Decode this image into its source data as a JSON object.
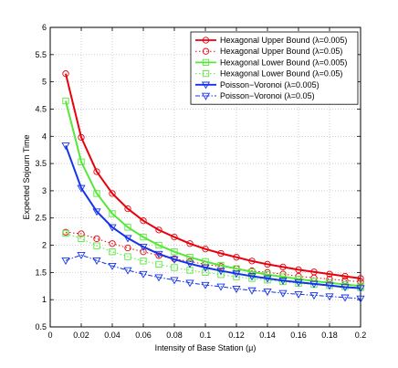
{
  "chart_data": {
    "type": "line",
    "title": "",
    "xlabel": "Intensity of Base Station (μ)",
    "ylabel": "Expected Sojourn Time",
    "xlim": [
      0,
      0.2
    ],
    "ylim": [
      0.5,
      6
    ],
    "xticks": [
      0,
      0.02,
      0.04,
      0.06,
      0.08,
      0.1,
      0.12,
      0.14,
      0.16,
      0.18,
      0.2
    ],
    "xtick_labels": [
      "0",
      "0.02",
      "0.04",
      "0.06",
      "0.08",
      "0.1",
      "0.12",
      "0.14",
      "0.16",
      "0.18",
      "0.2"
    ],
    "yticks": [
      0.5,
      1,
      1.5,
      2,
      2.5,
      3,
      3.5,
      4,
      4.5,
      5,
      5.5,
      6
    ],
    "ytick_labels": [
      "0.5",
      "1",
      "1.5",
      "2",
      "2.5",
      "3",
      "3.5",
      "4",
      "4.5",
      "5",
      "5.5",
      "6"
    ],
    "grid": true,
    "legend_position": "top-right",
    "x": [
      0.01,
      0.02,
      0.03,
      0.04,
      0.05,
      0.06,
      0.07,
      0.08,
      0.09,
      0.1,
      0.11,
      0.12,
      0.13,
      0.14,
      0.15,
      0.16,
      0.17,
      0.18,
      0.19,
      0.2
    ],
    "series": [
      {
        "name": "Hexagonal Upper Bound (λ=0.005)",
        "color": "#e8000b",
        "line": "solid",
        "marker": "circle",
        "values": [
          5.15,
          3.98,
          3.35,
          2.95,
          2.67,
          2.45,
          2.28,
          2.15,
          2.03,
          1.93,
          1.85,
          1.78,
          1.71,
          1.65,
          1.6,
          1.55,
          1.51,
          1.47,
          1.43,
          1.39
        ]
      },
      {
        "name": "Hexagonal Upper Bound (λ=0.05)",
        "color": "#e8000b",
        "line": "dotted",
        "marker": "circle",
        "values": [
          2.24,
          2.21,
          2.12,
          2.03,
          1.95,
          1.88,
          1.81,
          1.75,
          1.7,
          1.65,
          1.61,
          1.57,
          1.53,
          1.5,
          1.47,
          1.43,
          1.4,
          1.38,
          1.35,
          1.33
        ]
      },
      {
        "name": "Hexagonal Lower Bound (λ=0.005)",
        "color": "#55e83a",
        "line": "solid",
        "marker": "square",
        "values": [
          4.65,
          3.53,
          2.95,
          2.58,
          2.33,
          2.15,
          2.0,
          1.88,
          1.78,
          1.7,
          1.63,
          1.57,
          1.51,
          1.46,
          1.42,
          1.38,
          1.34,
          1.31,
          1.28,
          1.25
        ]
      },
      {
        "name": "Hexagonal Lower Bound (λ=0.05)",
        "color": "#55e83a",
        "line": "dotted",
        "marker": "square",
        "values": [
          2.22,
          2.12,
          1.99,
          1.88,
          1.79,
          1.71,
          1.65,
          1.59,
          1.54,
          1.5,
          1.46,
          1.42,
          1.39,
          1.36,
          1.33,
          1.3,
          1.28,
          1.26,
          1.24,
          1.22
        ]
      },
      {
        "name": "Poisson−Voronoi (λ=0.005)",
        "color": "#1533e8",
        "line": "solid",
        "marker": "triangle-down",
        "values": [
          3.83,
          3.05,
          2.62,
          2.33,
          2.13,
          1.97,
          1.84,
          1.74,
          1.66,
          1.59,
          1.53,
          1.48,
          1.43,
          1.39,
          1.35,
          1.32,
          1.29,
          1.26,
          1.23,
          1.21
        ]
      },
      {
        "name": "Poisson−Voronoi (λ=0.05)",
        "color": "#1533e8",
        "line": "dashdot",
        "marker": "triangle-down",
        "values": [
          1.72,
          1.82,
          1.72,
          1.62,
          1.54,
          1.47,
          1.41,
          1.36,
          1.31,
          1.27,
          1.24,
          1.2,
          1.17,
          1.15,
          1.12,
          1.1,
          1.08,
          1.06,
          1.04,
          1.02
        ]
      }
    ]
  }
}
